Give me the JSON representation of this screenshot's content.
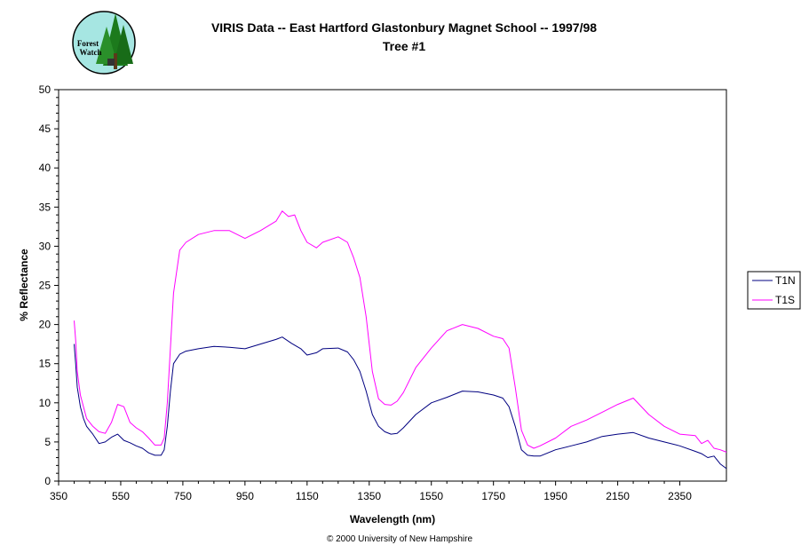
{
  "logo": {
    "line1": "Forest",
    "line2": "Watch"
  },
  "footer": {
    "copyright": "© 2000 University of New Hampshire"
  },
  "colors": {
    "T1N": "#000080",
    "T1S": "#ff00ff",
    "frame": "#000000"
  },
  "chart_data": {
    "type": "line",
    "title": "VIRIS Data -- East Hartford Glastonbury Magnet School -- 1997/98",
    "subtitle": "Tree #1",
    "xlabel": "Wavelength (nm)",
    "ylabel": "% Reflectance",
    "xlim": [
      350,
      2500
    ],
    "ylim": [
      0,
      50
    ],
    "xticks": [
      350,
      550,
      750,
      950,
      1150,
      1350,
      1550,
      1750,
      1950,
      2150,
      2350
    ],
    "yticks": [
      0,
      5,
      10,
      15,
      20,
      25,
      30,
      35,
      40,
      45,
      50
    ],
    "grid": false,
    "legend": "right",
    "series": [
      {
        "name": "T1N",
        "x": [
          400,
          405,
          410,
          420,
          430,
          440,
          460,
          480,
          500,
          520,
          540,
          560,
          580,
          600,
          620,
          640,
          660,
          680,
          690,
          700,
          710,
          720,
          740,
          760,
          800,
          850,
          900,
          950,
          1000,
          1050,
          1070,
          1100,
          1130,
          1150,
          1180,
          1200,
          1250,
          1280,
          1300,
          1320,
          1340,
          1360,
          1380,
          1400,
          1420,
          1440,
          1460,
          1500,
          1550,
          1600,
          1650,
          1700,
          1750,
          1780,
          1800,
          1820,
          1840,
          1860,
          1880,
          1900,
          1950,
          2000,
          2050,
          2100,
          2150,
          2200,
          2250,
          2300,
          2350,
          2400,
          2420,
          2440,
          2460,
          2480,
          2500
        ],
        "y": [
          17.5,
          15,
          12,
          9.5,
          8,
          7,
          6,
          4.8,
          5,
          5.6,
          6,
          5.2,
          4.9,
          4.5,
          4.2,
          3.6,
          3.3,
          3.3,
          4,
          7,
          11.5,
          15,
          16.2,
          16.6,
          16.9,
          17.2,
          17.1,
          16.9,
          17.5,
          18.1,
          18.4,
          17.6,
          16.9,
          16.1,
          16.4,
          16.9,
          17,
          16.5,
          15.5,
          14,
          11.5,
          8.5,
          7,
          6.3,
          6,
          6.1,
          6.8,
          8.5,
          10,
          10.7,
          11.5,
          11.4,
          11,
          10.6,
          9.5,
          7,
          4,
          3.3,
          3.2,
          3.2,
          4,
          4.5,
          5,
          5.7,
          6,
          6.2,
          5.5,
          5,
          4.5,
          3.8,
          3.5,
          3,
          3.2,
          2.2,
          1.6
        ]
      },
      {
        "name": "T1S",
        "x": [
          400,
          405,
          410,
          420,
          430,
          440,
          460,
          480,
          500,
          520,
          540,
          560,
          580,
          600,
          620,
          640,
          660,
          680,
          690,
          700,
          710,
          720,
          740,
          760,
          800,
          850,
          900,
          950,
          1000,
          1050,
          1070,
          1090,
          1110,
          1130,
          1150,
          1180,
          1200,
          1250,
          1280,
          1300,
          1320,
          1340,
          1360,
          1380,
          1400,
          1420,
          1440,
          1460,
          1500,
          1550,
          1600,
          1650,
          1700,
          1750,
          1780,
          1800,
          1820,
          1840,
          1860,
          1880,
          1900,
          1950,
          2000,
          2050,
          2100,
          2150,
          2200,
          2250,
          2300,
          2350,
          2400,
          2420,
          2440,
          2460,
          2480,
          2500
        ],
        "y": [
          20.5,
          18,
          14,
          11,
          9.5,
          8,
          7,
          6.3,
          6.1,
          7.5,
          9.8,
          9.5,
          7.5,
          6.8,
          6.3,
          5.5,
          4.6,
          4.6,
          5.5,
          10,
          17,
          24,
          29.5,
          30.5,
          31.5,
          32,
          32,
          31,
          32,
          33.2,
          34.5,
          33.8,
          34,
          32,
          30.5,
          29.8,
          30.5,
          31.2,
          30.5,
          28.5,
          26,
          21,
          14,
          10.5,
          9.8,
          9.7,
          10.2,
          11.3,
          14.5,
          17,
          19.2,
          20,
          19.5,
          18.5,
          18.2,
          17,
          12,
          6.5,
          4.6,
          4.2,
          4.5,
          5.5,
          7,
          7.8,
          8.8,
          9.8,
          10.6,
          8.5,
          7,
          6,
          5.8,
          4.8,
          5.2,
          4.2,
          4,
          3.7
        ]
      }
    ]
  }
}
